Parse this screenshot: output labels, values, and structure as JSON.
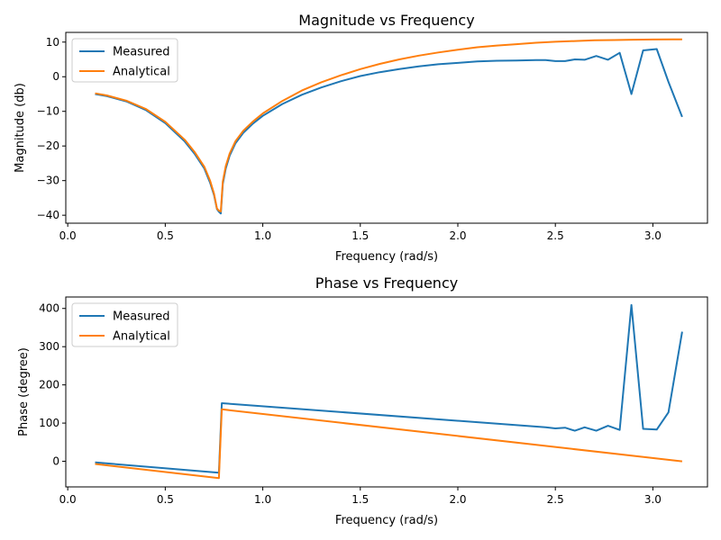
{
  "chart_data": [
    {
      "type": "line",
      "title": "Magnitude vs Frequency",
      "xlabel": "Frequency (rad/s)",
      "ylabel": "Magnitude (db)",
      "xlim": [
        -0.01,
        3.28
      ],
      "ylim": [
        -42.3,
        12.8
      ],
      "xticks": [
        0.0,
        0.5,
        1.0,
        1.5,
        2.0,
        2.5,
        3.0
      ],
      "xtick_labels": [
        "0.0",
        "0.5",
        "1.0",
        "1.5",
        "2.0",
        "2.5",
        "3.0"
      ],
      "yticks": [
        -40,
        -30,
        -20,
        -10,
        0,
        10
      ],
      "ytick_labels": [
        "−40",
        "−30",
        "−20",
        "−10",
        "0",
        "10"
      ],
      "grid": false,
      "legend_position": "top-left",
      "series": [
        {
          "name": "Measured",
          "color": "#1f77b4",
          "x": [
            0.14,
            0.2,
            0.3,
            0.4,
            0.5,
            0.6,
            0.65,
            0.7,
            0.73,
            0.75,
            0.765,
            0.775,
            0.785,
            0.795,
            0.81,
            0.83,
            0.86,
            0.9,
            0.95,
            1.0,
            1.1,
            1.2,
            1.3,
            1.4,
            1.5,
            1.6,
            1.7,
            1.8,
            1.9,
            2.0,
            2.1,
            2.2,
            2.3,
            2.4,
            2.45,
            2.5,
            2.55,
            2.6,
            2.65,
            2.71,
            2.77,
            2.83,
            2.89,
            2.95,
            3.02,
            3.08,
            3.15
          ],
          "y": [
            -5.0,
            -5.6,
            -7.1,
            -9.6,
            -13.4,
            -18.7,
            -22.2,
            -26.5,
            -30.6,
            -34.2,
            -38.2,
            -39.0,
            -39.5,
            -31.0,
            -26.5,
            -22.8,
            -19.2,
            -16.2,
            -13.5,
            -11.3,
            -7.9,
            -5.2,
            -3.1,
            -1.3,
            0.2,
            1.3,
            2.2,
            3.0,
            3.6,
            4.0,
            4.4,
            4.6,
            4.7,
            4.8,
            4.8,
            4.5,
            4.5,
            5.0,
            4.9,
            6.0,
            4.9,
            6.9,
            -5.0,
            7.6,
            8.0,
            -1.5,
            -11.6
          ]
        },
        {
          "name": "Analytical",
          "color": "#ff7f0e",
          "x": [
            0.14,
            0.2,
            0.3,
            0.4,
            0.5,
            0.6,
            0.65,
            0.7,
            0.73,
            0.75,
            0.765,
            0.775,
            0.785,
            0.795,
            0.81,
            0.83,
            0.86,
            0.9,
            0.95,
            1.0,
            1.1,
            1.2,
            1.3,
            1.4,
            1.5,
            1.6,
            1.7,
            1.8,
            1.9,
            2.0,
            2.1,
            2.2,
            2.3,
            2.4,
            2.5,
            2.6,
            2.7,
            2.8,
            2.9,
            3.0,
            3.1,
            3.15
          ],
          "y": [
            -4.8,
            -5.4,
            -6.9,
            -9.3,
            -13.0,
            -18.2,
            -21.7,
            -26.0,
            -30.0,
            -33.8,
            -38.0,
            -38.7,
            -38.9,
            -30.3,
            -25.8,
            -22.2,
            -18.6,
            -15.6,
            -12.9,
            -10.6,
            -7.0,
            -4.0,
            -1.6,
            0.4,
            2.2,
            3.7,
            5.0,
            6.1,
            7.0,
            7.8,
            8.5,
            9.0,
            9.4,
            9.8,
            10.1,
            10.3,
            10.5,
            10.6,
            10.7,
            10.75,
            10.8,
            10.8
          ]
        }
      ]
    },
    {
      "type": "line",
      "title": "Phase vs Frequency",
      "xlabel": "Frequency (rad/s)",
      "ylabel": "Phase (degree)",
      "xlim": [
        -0.01,
        3.28
      ],
      "ylim": [
        -67,
        430
      ],
      "xticks": [
        0.0,
        0.5,
        1.0,
        1.5,
        2.0,
        2.5,
        3.0
      ],
      "xtick_labels": [
        "0.0",
        "0.5",
        "1.0",
        "1.5",
        "2.0",
        "2.5",
        "3.0"
      ],
      "yticks": [
        0,
        100,
        200,
        300,
        400
      ],
      "ytick_labels": [
        "0",
        "100",
        "200",
        "300",
        "400"
      ],
      "grid": false,
      "legend_position": "top-left",
      "series": [
        {
          "name": "Measured",
          "color": "#1f77b4",
          "x": [
            0.14,
            0.775,
            0.79,
            2.45,
            2.5,
            2.55,
            2.6,
            2.65,
            2.71,
            2.77,
            2.83,
            2.89,
            2.95,
            3.02,
            3.08,
            3.15
          ],
          "y": [
            -3,
            -30,
            152,
            89,
            86,
            88,
            80,
            89,
            80,
            93,
            82,
            409,
            85,
            83,
            128,
            339
          ]
        },
        {
          "name": "Analytical",
          "color": "#ff7f0e",
          "x": [
            0.14,
            0.775,
            0.79,
            3.15
          ],
          "y": [
            -7,
            -44,
            136,
            0
          ]
        }
      ]
    }
  ]
}
